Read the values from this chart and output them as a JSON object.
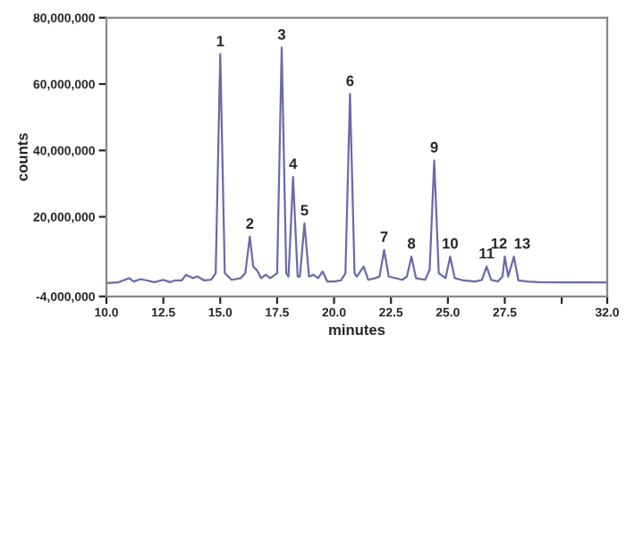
{
  "chart_data": {
    "type": "line",
    "xlabel": "minutes",
    "ylabel": "counts",
    "xlim": [
      10.0,
      32.0
    ],
    "xticks": [
      {
        "value": 10.0,
        "label": "10.0"
      },
      {
        "value": 12.5,
        "label": "12.5"
      },
      {
        "value": 15.0,
        "label": "15.0"
      },
      {
        "value": 17.5,
        "label": "17.5"
      },
      {
        "value": 20.0,
        "label": "20.0"
      },
      {
        "value": 22.5,
        "label": "22.5"
      },
      {
        "value": 25.0,
        "label": "25.0"
      },
      {
        "value": 27.5,
        "label": "27.5"
      },
      {
        "value": 30.0,
        "label": null
      },
      {
        "value": 32.0,
        "label": "32.0"
      }
    ],
    "ylim": [
      -4000000,
      80000000
    ],
    "yticks": [
      {
        "value": -4000000,
        "label": "-4,000,000"
      },
      {
        "value": 20000000,
        "label": "20,000,000"
      },
      {
        "value": 40000000,
        "label": "40,000,000"
      },
      {
        "value": 60000000,
        "label": "60,000,000"
      },
      {
        "value": 80000000,
        "label": "80,000,000"
      }
    ],
    "grid": false,
    "marker": "none",
    "line_style": "solid",
    "series": [
      {
        "color": "#6a6aa8",
        "x": [
          10.0,
          10.5,
          11.0,
          11.2,
          11.5,
          11.8,
          12.1,
          12.5,
          12.8,
          13.0,
          13.3,
          13.5,
          13.8,
          14.0,
          14.3,
          14.6,
          14.8,
          15.0,
          15.2,
          15.5,
          15.9,
          16.1,
          16.3,
          16.45,
          16.6,
          16.8,
          17.0,
          17.2,
          17.5,
          17.7,
          17.9,
          18.0,
          18.2,
          18.4,
          18.5,
          18.7,
          18.9,
          19.1,
          19.3,
          19.5,
          19.7,
          20.0,
          20.3,
          20.5,
          20.7,
          20.9,
          21.0,
          21.3,
          21.5,
          21.8,
          22.0,
          22.2,
          22.4,
          23.0,
          23.2,
          23.4,
          23.6,
          24.0,
          24.2,
          24.4,
          24.6,
          24.9,
          25.1,
          25.3,
          25.7,
          26.2,
          26.5,
          26.7,
          26.9,
          27.2,
          27.4,
          27.5,
          27.65,
          27.9,
          28.1,
          28.5,
          29.0,
          30.0,
          31.0,
          32.0
        ],
        "values": [
          0,
          200000,
          1500000,
          500000,
          1200000,
          800000,
          300000,
          1000000,
          300000,
          800000,
          800000,
          2500000,
          1500000,
          2000000,
          800000,
          1000000,
          3000000,
          69000000,
          3000000,
          1000000,
          1500000,
          3000000,
          14000000,
          5000000,
          4000000,
          1500000,
          2500000,
          1500000,
          3000000,
          71000000,
          3000000,
          2000000,
          32000000,
          2000000,
          2000000,
          18000000,
          2000000,
          2500000,
          1500000,
          3500000,
          500000,
          500000,
          800000,
          3000000,
          57000000,
          3000000,
          2000000,
          5000000,
          1000000,
          1500000,
          2000000,
          10000000,
          2000000,
          1000000,
          2000000,
          8000000,
          1500000,
          1000000,
          4000000,
          37000000,
          3000000,
          1500000,
          8000000,
          1500000,
          800000,
          500000,
          1000000,
          5000000,
          1000000,
          500000,
          2000000,
          8000000,
          2000000,
          8000000,
          800000,
          500000,
          300000,
          200000,
          200000,
          200000
        ]
      }
    ],
    "annotations": [
      {
        "text": "1",
        "x": 15.0,
        "y": 69000000
      },
      {
        "text": "2",
        "x": 16.3,
        "y": 14000000
      },
      {
        "text": "3",
        "x": 17.7,
        "y": 71000000
      },
      {
        "text": "4",
        "x": 18.2,
        "y": 32000000
      },
      {
        "text": "5",
        "x": 18.7,
        "y": 18000000
      },
      {
        "text": "6",
        "x": 20.7,
        "y": 57000000
      },
      {
        "text": "7",
        "x": 22.2,
        "y": 10000000
      },
      {
        "text": "8",
        "x": 23.4,
        "y": 8000000
      },
      {
        "text": "9",
        "x": 24.4,
        "y": 37000000
      },
      {
        "text": "10",
        "x": 25.1,
        "y": 8000000
      },
      {
        "text": "11",
        "x": 26.7,
        "y": 5000000
      },
      {
        "text": "12",
        "x": 27.5,
        "y": 8000000
      },
      {
        "text": "13",
        "x": 27.9,
        "y": 8000000
      }
    ]
  }
}
